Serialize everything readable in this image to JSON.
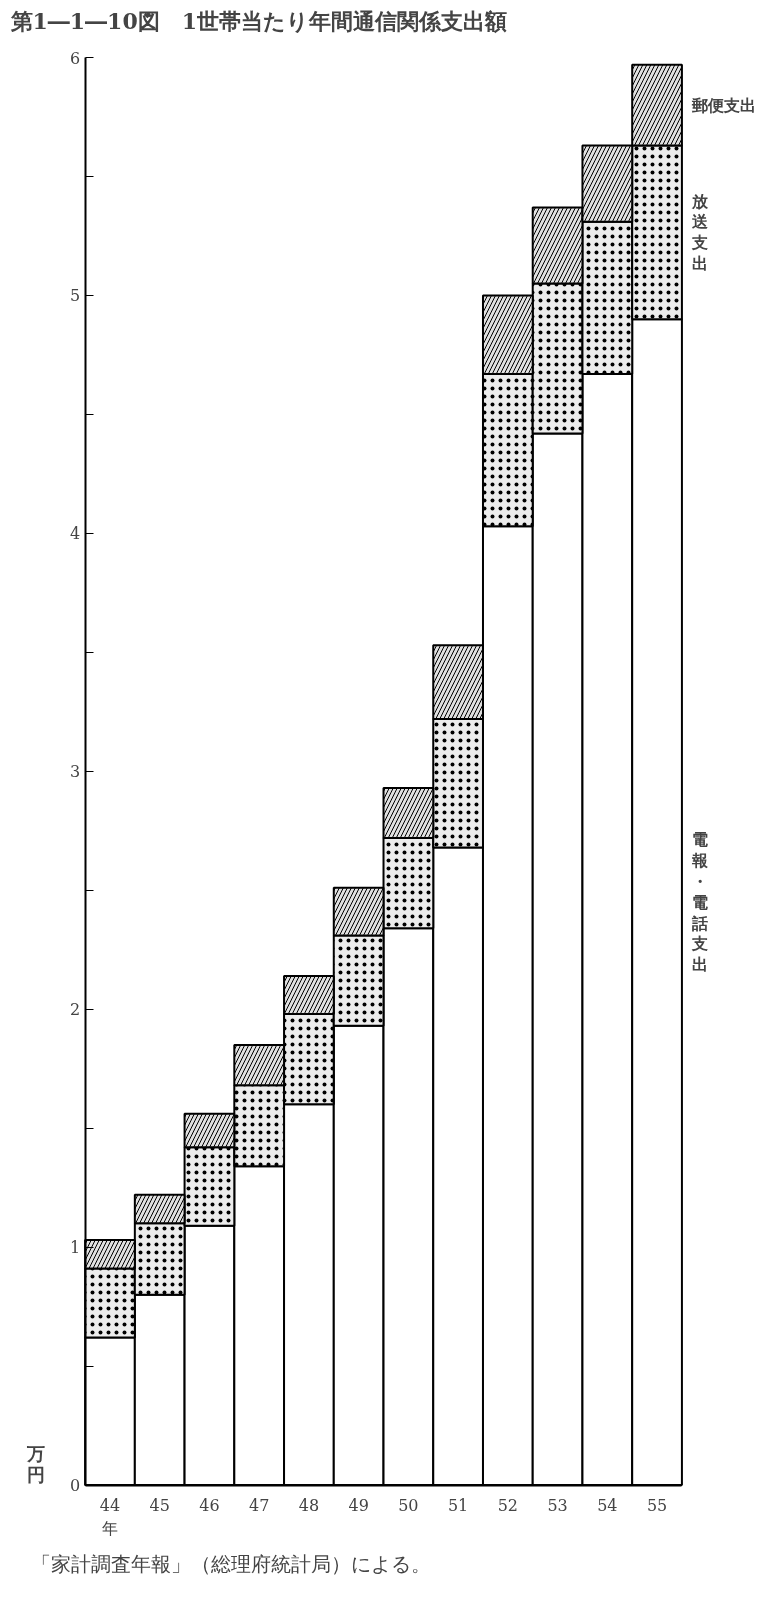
{
  "chart_data": {
    "type": "bar",
    "stacked": true,
    "title": "第1―1―10図　1世帯当たり年間通信関係支出額",
    "ylabel": "万円",
    "categories": [
      "44\n年",
      "45",
      "46",
      "47",
      "48",
      "49",
      "50",
      "51",
      "52",
      "53",
      "54",
      "55"
    ],
    "series": [
      {
        "name": "電報・電話支出",
        "color": "#ffffff",
        "values": [
          0.62,
          0.8,
          1.09,
          1.34,
          1.6,
          1.93,
          2.34,
          2.68,
          4.03,
          4.42,
          4.67,
          4.9
        ]
      },
      {
        "name": "放送支出",
        "color": "#ececec",
        "values": [
          0.29,
          0.3,
          0.33,
          0.34,
          0.38,
          0.38,
          0.38,
          0.54,
          0.64,
          0.63,
          0.64,
          0.73
        ]
      },
      {
        "name": "郵便支出",
        "color": "#e0e0e0",
        "values": [
          0.12,
          0.12,
          0.14,
          0.17,
          0.16,
          0.2,
          0.21,
          0.31,
          0.33,
          0.32,
          0.32,
          0.34
        ]
      }
    ],
    "ylim": [
      0,
      6
    ],
    "yticks": [
      0,
      {
        "value": 0.5,
        "label": null
      },
      1,
      {
        "value": 1.5,
        "label": null
      },
      2,
      {
        "value": 2.5,
        "label": null
      },
      3,
      {
        "value": 3.5,
        "label": null
      },
      4,
      {
        "value": 4.5,
        "label": null
      },
      5,
      {
        "value": 5.5,
        "label": null
      },
      6
    ],
    "grid": false,
    "legend": false,
    "annotations": [
      "「家計調査年報」（総理府統計局）による。"
    ]
  }
}
